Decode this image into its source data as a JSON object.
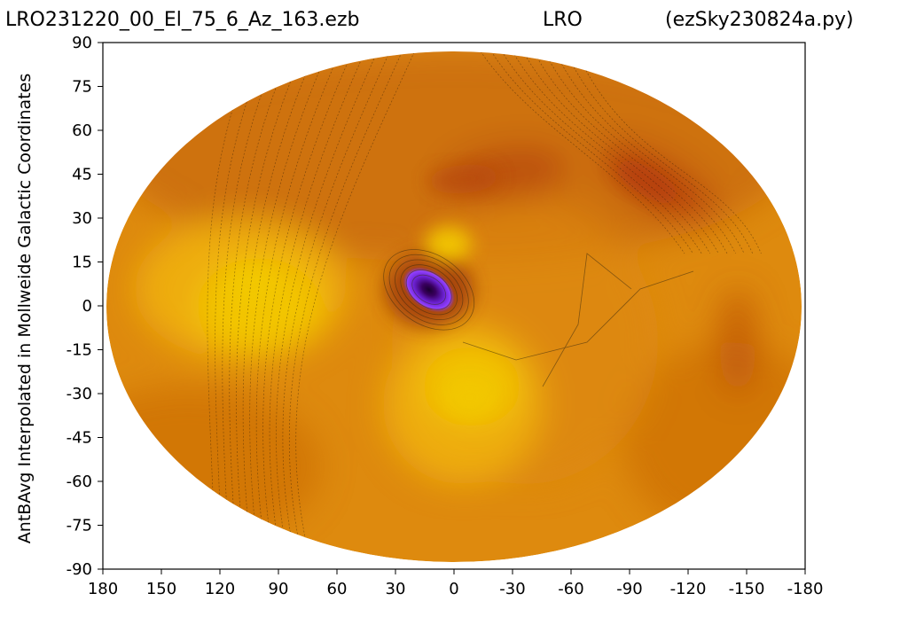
{
  "header": {
    "left": "LRO231220_00_El_75_6_Az_163.ezb",
    "center": "LRO",
    "right": "(ezSky230824a.py)"
  },
  "chart_data": {
    "type": "heatmap",
    "projection": "mollweide",
    "title": "",
    "ylabel": "AntBAvg Interpolated in Mollweide Galactic Coordinates",
    "xlabel": "",
    "x_ticks": [
      "180",
      "150",
      "120",
      "90",
      "60",
      "30",
      "0",
      "-30",
      "-60",
      "-90",
      "-120",
      "-150",
      "-180"
    ],
    "y_ticks": [
      "90",
      "75",
      "60",
      "45",
      "30",
      "15",
      "0",
      "-15",
      "-30",
      "-45",
      "-60",
      "-75",
      "-90"
    ],
    "xlim": [
      180,
      -180
    ],
    "ylim": [
      -90,
      90
    ],
    "colormap": [
      "#3a0060",
      "#7a30ff",
      "#a02a00",
      "#d46a00",
      "#f0a000",
      "#f5d000"
    ],
    "features": [
      {
        "kind": "minimum",
        "lon": 13,
        "lat": 6,
        "color": "#3a0060"
      },
      {
        "kind": "maximum",
        "lon": 3,
        "lat": 22,
        "color": "#f5d000"
      },
      {
        "kind": "maximum",
        "lon": 105,
        "lat": 8,
        "color": "#f2c800"
      },
      {
        "kind": "maximum",
        "lon": -8,
        "lat": -32,
        "color": "#f2c800"
      },
      {
        "kind": "low",
        "lon": -100,
        "lat": 44,
        "color": "#b43a08"
      },
      {
        "kind": "low",
        "lon": -5,
        "lat": 45,
        "color": "#b84a08"
      }
    ],
    "grid": false
  }
}
